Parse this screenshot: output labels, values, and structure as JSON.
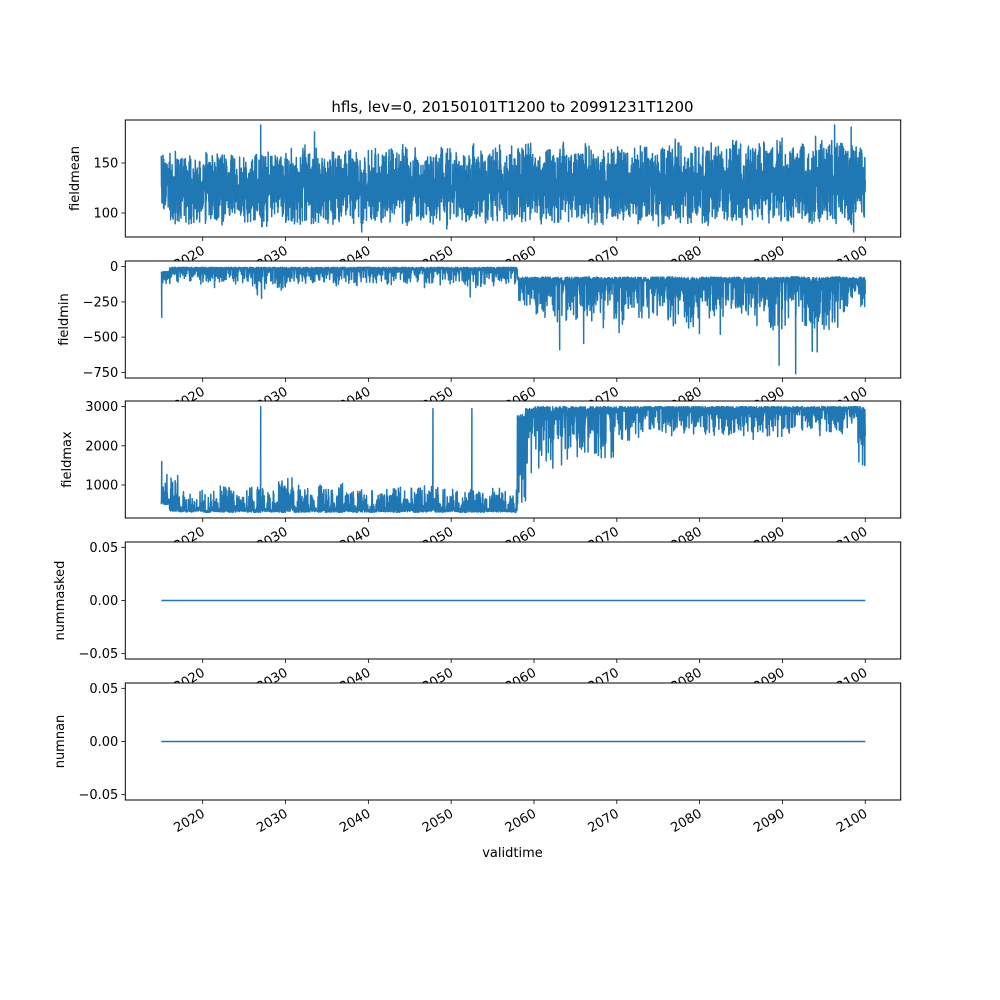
{
  "chart_data": {
    "type": "line",
    "title": "hfls, lev=0, 20150101T1200 to 20991231T1200",
    "xlabel": "validtime",
    "xlim": [
      2010.65,
      2104.28
    ],
    "xticks": [
      2020,
      2030,
      2040,
      2050,
      2060,
      2070,
      2080,
      2090,
      2100
    ],
    "xtick_labels": [
      "2020",
      "2030",
      "2040",
      "2050",
      "2060",
      "2070",
      "2080",
      "2090",
      "2100"
    ],
    "line_color": "#1f77b4",
    "data_start_year": 2015,
    "data_end_year": 2100,
    "note_on_values": "Per-year typical range [lo, hi] of the daily series plus isolated spikes",
    "panels": [
      {
        "ylabel": "fieldmean",
        "ylim": [
          76,
          193
        ],
        "yticks": [
          100,
          150
        ],
        "ytick_labels": [
          "100",
          "150"
        ],
        "skew": "center",
        "lo": [
          103,
          88,
          89,
          87,
          90,
          86,
          91,
          88,
          92,
          89,
          90,
          88,
          86,
          90,
          91,
          88,
          87,
          92,
          89,
          91,
          88,
          86,
          90,
          89,
          88,
          92,
          90,
          88,
          91,
          86,
          89,
          90,
          87,
          92,
          84,
          85,
          90,
          91,
          89,
          88,
          92,
          90,
          87,
          89,
          91,
          88,
          90,
          86,
          92,
          89,
          91,
          90,
          88,
          87,
          90,
          92,
          89,
          88,
          91,
          90,
          86,
          92,
          89,
          88,
          91,
          90,
          87,
          92,
          90,
          89,
          88,
          91,
          92,
          89,
          88,
          90,
          91,
          87,
          89,
          90,
          92,
          88,
          91,
          88,
          95
        ],
        "hi": [
          158,
          163,
          155,
          160,
          154,
          162,
          165,
          158,
          160,
          156,
          163,
          160,
          165,
          162,
          158,
          165,
          160,
          172,
          168,
          160,
          163,
          158,
          166,
          162,
          160,
          165,
          160,
          168,
          163,
          170,
          168,
          160,
          158,
          170,
          165,
          162,
          158,
          172,
          165,
          160,
          168,
          160,
          172,
          165,
          170,
          158,
          166,
          162,
          172,
          165,
          160,
          170,
          162,
          175,
          165,
          168,
          160,
          172,
          166,
          170,
          165,
          168,
          175,
          162,
          170,
          166,
          172,
          168,
          165,
          176,
          170,
          165,
          172,
          168,
          175,
          170,
          166,
          172,
          168,
          178,
          176,
          172,
          172,
          170,
          170
        ],
        "spikes": [
          [
            2027.0,
            188
          ],
          [
            2033.5,
            181
          ],
          [
            2039.2,
            81
          ],
          [
            2096.3,
            188
          ],
          [
            2098.3,
            186
          ],
          [
            2098.6,
            81
          ]
        ]
      },
      {
        "ylabel": "fieldmin",
        "ylim": [
          -790,
          40
        ],
        "yticks": [
          0,
          -250,
          -500,
          -750
        ],
        "ytick_labels": [
          "0",
          "−250",
          "−500",
          "−750"
        ],
        "skew": "top",
        "lo": [
          -150,
          -130,
          -110,
          -120,
          -130,
          -110,
          -150,
          -120,
          -130,
          -115,
          -140,
          -160,
          -160,
          -130,
          -170,
          -120,
          -150,
          -130,
          -140,
          -120,
          -130,
          -140,
          -120,
          -150,
          -130,
          -140,
          -120,
          -130,
          -145,
          -125,
          -130,
          -150,
          -120,
          -140,
          -135,
          -130,
          -140,
          -150,
          -150,
          -130,
          -140,
          -125,
          -135,
          -270,
          -300,
          -340,
          -400,
          -420,
          -420,
          -360,
          -380,
          -400,
          -350,
          -440,
          -380,
          -480,
          -320,
          -400,
          -380,
          -360,
          -330,
          -420,
          -410,
          -460,
          -480,
          -350,
          -380,
          -360,
          -330,
          -340,
          -360,
          -420,
          -380,
          -450,
          -450,
          -450,
          -360,
          -450,
          -450,
          -450,
          -450,
          -430,
          -380,
          -300,
          -310
        ],
        "hi": [
          -35,
          -5,
          -5,
          -5,
          -5,
          -5,
          -5,
          -5,
          -5,
          -5,
          -5,
          -5,
          -5,
          -5,
          -5,
          -5,
          -5,
          -5,
          -5,
          -5,
          -5,
          -5,
          -5,
          -5,
          -5,
          -5,
          -5,
          -5,
          -5,
          -5,
          -5,
          -5,
          -5,
          -5,
          -5,
          -5,
          -5,
          -5,
          -5,
          -5,
          -5,
          -5,
          -5,
          -75,
          -75,
          -75,
          -72,
          -75,
          -78,
          -75,
          -75,
          -72,
          -75,
          -78,
          -75,
          -75,
          -72,
          -75,
          -78,
          -75,
          -75,
          -72,
          -75,
          -78,
          -75,
          -75,
          -72,
          -75,
          -78,
          -75,
          -75,
          -72,
          -75,
          -78,
          -75,
          -75,
          -72,
          -75,
          -78,
          -75,
          -75,
          -72,
          -75,
          -78,
          -75
        ],
        "spikes": [
          [
            2015.05,
            -360
          ],
          [
            2026.6,
            -200
          ],
          [
            2027.1,
            -225
          ],
          [
            2052.3,
            -215
          ],
          [
            2063.1,
            -590
          ],
          [
            2066.0,
            -545
          ],
          [
            2082.5,
            -480
          ],
          [
            2089.6,
            -700
          ],
          [
            2091.6,
            -760
          ],
          [
            2094.2,
            -605
          ],
          [
            2093.6,
            -600
          ]
        ]
      },
      {
        "ylabel": "fieldmax",
        "ylim": [
          157,
          3144
        ],
        "yticks": [
          1000,
          2000,
          3000
        ],
        "ytick_labels": [
          "1000",
          "2000",
          "3000"
        ],
        "skew": "bottom-then-top",
        "skew_switch_year": 2058,
        "lo": [
          500,
          330,
          320,
          310,
          330,
          300,
          320,
          310,
          300,
          320,
          310,
          300,
          320,
          310,
          300,
          320,
          300,
          310,
          320,
          300,
          310,
          300,
          320,
          300,
          310,
          300,
          320,
          310,
          300,
          320,
          300,
          310,
          320,
          300,
          310,
          320,
          300,
          310,
          300,
          320,
          310,
          320,
          300,
          400,
          1200,
          1300,
          1500,
          1400,
          1500,
          1600,
          1450,
          1650,
          1700,
          1400,
          1700,
          2000,
          2100,
          2200,
          2200,
          2250,
          2300,
          2250,
          2300,
          2200,
          2300,
          2250,
          2200,
          2300,
          2250,
          2300,
          2200,
          2100,
          2300,
          2250,
          2200,
          2300,
          2250,
          2200,
          2300,
          2250,
          2300,
          2350,
          2300,
          2400,
          1500
        ],
        "hi": [
          1300,
          1250,
          900,
          850,
          880,
          860,
          900,
          1000,
          950,
          920,
          1000,
          980,
          950,
          900,
          1180,
          1280,
          1000,
          1050,
          950,
          1000,
          980,
          1050,
          900,
          1120,
          1000,
          960,
          900,
          920,
          940,
          900,
          950,
          1000,
          980,
          950,
          960,
          900,
          920,
          900,
          880,
          900,
          920,
          850,
          900,
          2800,
          2950,
          3000,
          3000,
          3000,
          3000,
          3000,
          3000,
          3000,
          3000,
          3000,
          3000,
          3000,
          3000,
          3000,
          3000,
          3000,
          3000,
          3000,
          3000,
          3000,
          3000,
          3000,
          3000,
          3000,
          3000,
          3000,
          3000,
          3000,
          3000,
          3000,
          3000,
          3000,
          3000,
          3000,
          3000,
          3000,
          3000,
          3000,
          3000,
          3000,
          3000
        ],
        "spikes": [
          [
            2015.05,
            1600
          ],
          [
            2027.0,
            3000
          ],
          [
            2047.8,
            2950
          ],
          [
            2052.5,
            2950
          ],
          [
            2099.95,
            1500
          ]
        ]
      },
      {
        "ylabel": "nummasked",
        "ylim": [
          -0.055,
          0.055
        ],
        "yticks": [
          -0.05,
          0.0,
          0.05
        ],
        "ytick_labels": [
          "−0.05",
          "0.00",
          "0.05"
        ],
        "constant": 0
      },
      {
        "ylabel": "numnan",
        "ylim": [
          -0.055,
          0.055
        ],
        "yticks": [
          -0.05,
          0.0,
          0.05
        ],
        "ytick_labels": [
          "−0.05",
          "0.00",
          "0.05"
        ],
        "constant": 0
      }
    ]
  }
}
